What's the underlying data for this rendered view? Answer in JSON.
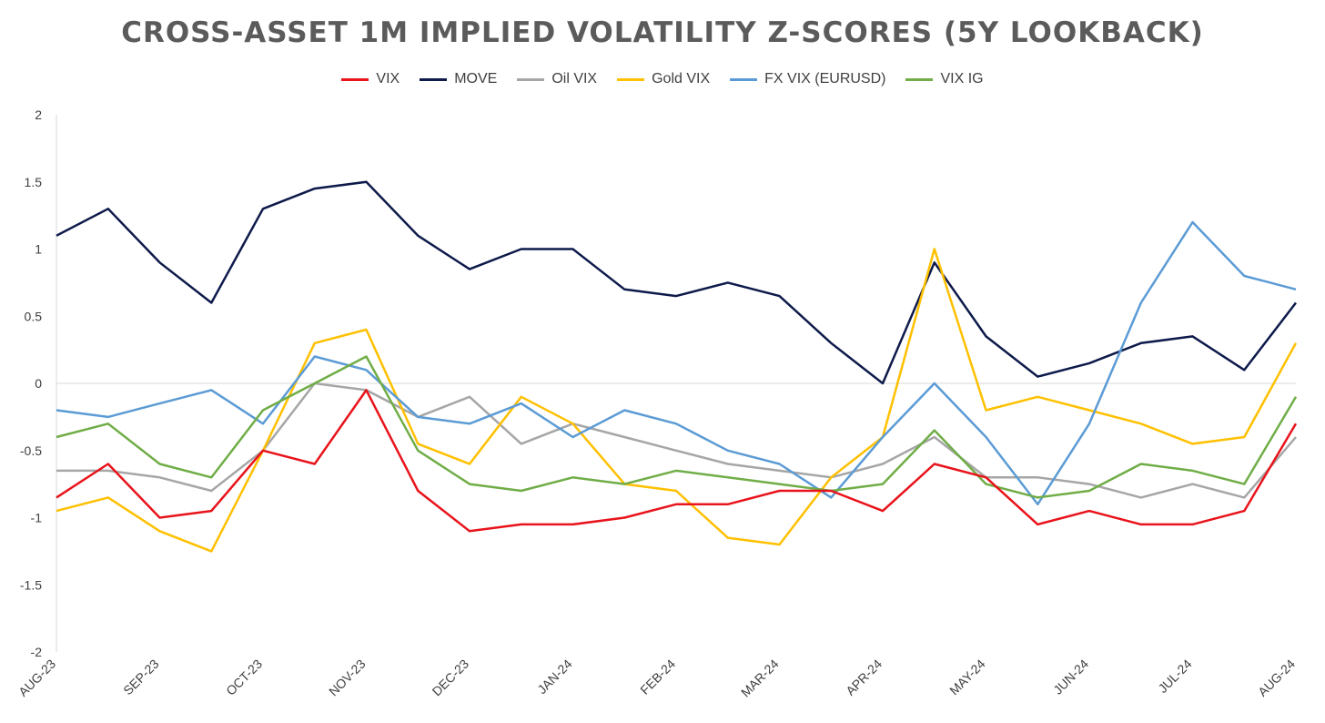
{
  "chart_data": {
    "type": "line",
    "title": "CROSS-ASSET 1M IMPLIED VOLATILITY Z-SCORES (5Y LOOKBACK)",
    "xlabel": "",
    "ylabel": "",
    "ylim": [
      -2,
      2
    ],
    "yticks": [
      "2",
      "1.5",
      "1",
      "0.5",
      "0",
      "-0.5",
      "-1",
      "-1.5",
      "-2"
    ],
    "ytick_values": [
      2,
      1.5,
      1,
      0.5,
      0,
      -0.5,
      -1,
      -1.5,
      -2
    ],
    "categories": [
      "AUG-23",
      "SEP-23",
      "OCT-23",
      "NOV-23",
      "DEC-23",
      "JAN-24",
      "FEB-24",
      "MAR-24",
      "APR-24",
      "MAY-24",
      "JUN-24",
      "JUL-24",
      "AUG-24"
    ],
    "x": [
      "2023-08",
      "2023-08b",
      "2023-09",
      "2023-09b",
      "2023-10",
      "2023-10b",
      "2023-11",
      "2023-11b",
      "2023-12",
      "2023-12b",
      "2024-01",
      "2024-01b",
      "2024-02",
      "2024-02b",
      "2024-03",
      "2024-03b",
      "2024-04",
      "2024-04b",
      "2024-05",
      "2024-05b",
      "2024-06",
      "2024-06b",
      "2024-07",
      "2024-07b",
      "2024-08"
    ],
    "grid": false,
    "legend_position": "top",
    "series": [
      {
        "name": "VIX",
        "color": "#e8131b",
        "values": [
          -0.85,
          -0.6,
          -1.0,
          -0.95,
          -0.5,
          -0.6,
          -0.05,
          -0.8,
          -1.1,
          -1.05,
          -1.05,
          -1.0,
          -0.9,
          -0.9,
          -0.8,
          -0.8,
          -0.95,
          -0.6,
          -0.7,
          -1.05,
          -0.95,
          -1.05,
          -1.05,
          -0.95,
          -0.3
        ]
      },
      {
        "name": "MOVE",
        "color": "#0d1a4a",
        "values": [
          1.1,
          1.3,
          0.9,
          0.6,
          1.3,
          1.45,
          1.5,
          1.1,
          0.85,
          1.0,
          1.0,
          0.7,
          0.65,
          0.75,
          0.65,
          0.3,
          0.0,
          0.9,
          0.35,
          0.05,
          0.15,
          0.3,
          0.35,
          0.1,
          0.6
        ]
      },
      {
        "name": "Oil VIX",
        "color": "#a6a6a6",
        "values": [
          -0.65,
          -0.65,
          -0.7,
          -0.8,
          -0.5,
          0.0,
          -0.05,
          -0.25,
          -0.1,
          -0.45,
          -0.3,
          -0.4,
          -0.5,
          -0.6,
          -0.65,
          -0.7,
          -0.6,
          -0.4,
          -0.7,
          -0.7,
          -0.75,
          -0.85,
          -0.75,
          -0.85,
          -0.4
        ]
      },
      {
        "name": "Gold VIX",
        "color": "#ffc000",
        "values": [
          -0.95,
          -0.85,
          -1.1,
          -1.25,
          -0.5,
          0.3,
          0.4,
          -0.45,
          -0.6,
          -0.1,
          -0.3,
          -0.75,
          -0.8,
          -1.15,
          -1.2,
          -0.7,
          -0.4,
          1.0,
          -0.2,
          -0.1,
          -0.2,
          -0.3,
          -0.45,
          -0.4,
          0.3
        ]
      },
      {
        "name": "FX VIX (EURUSD)",
        "color": "#5b9bd5",
        "values": [
          -0.2,
          -0.25,
          -0.15,
          -0.05,
          -0.3,
          0.2,
          0.1,
          -0.25,
          -0.3,
          -0.15,
          -0.4,
          -0.2,
          -0.3,
          -0.5,
          -0.6,
          -0.85,
          -0.4,
          0.0,
          -0.4,
          -0.9,
          -0.3,
          0.6,
          1.2,
          0.8,
          0.7
        ]
      },
      {
        "name": "VIX IG",
        "color": "#70ad47",
        "values": [
          -0.4,
          -0.3,
          -0.6,
          -0.7,
          -0.2,
          0.0,
          0.2,
          -0.5,
          -0.75,
          -0.8,
          -0.7,
          -0.75,
          -0.65,
          -0.7,
          -0.75,
          -0.8,
          -0.75,
          -0.35,
          -0.75,
          -0.85,
          -0.8,
          -0.6,
          -0.65,
          -0.75,
          -0.1
        ]
      }
    ]
  }
}
